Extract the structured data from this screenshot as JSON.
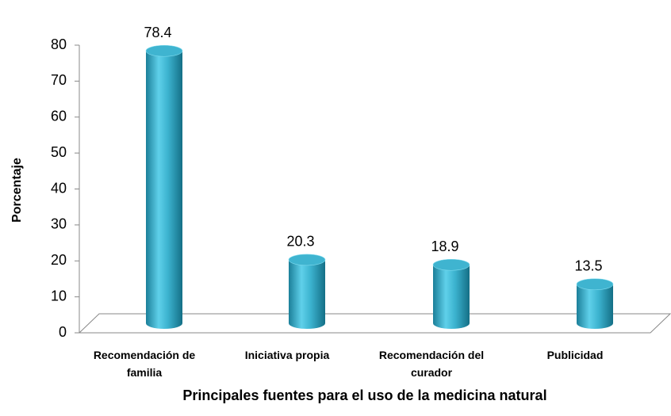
{
  "chart_data": {
    "type": "bar",
    "x_label": "Principales fuentes para el uso de la medicina natural",
    "y_label": "Porcentaje",
    "categories": [
      "Recomendación de familia",
      "Iniciativa propia",
      "Recomendación del curador",
      "Publicidad"
    ],
    "values": [
      78.4,
      20.3,
      18.9,
      13.5
    ],
    "color": "#3fb4d0",
    "ylim": [
      0,
      80
    ],
    "yticks": [
      0,
      10,
      20,
      30,
      40,
      50,
      60,
      70,
      80
    ]
  }
}
